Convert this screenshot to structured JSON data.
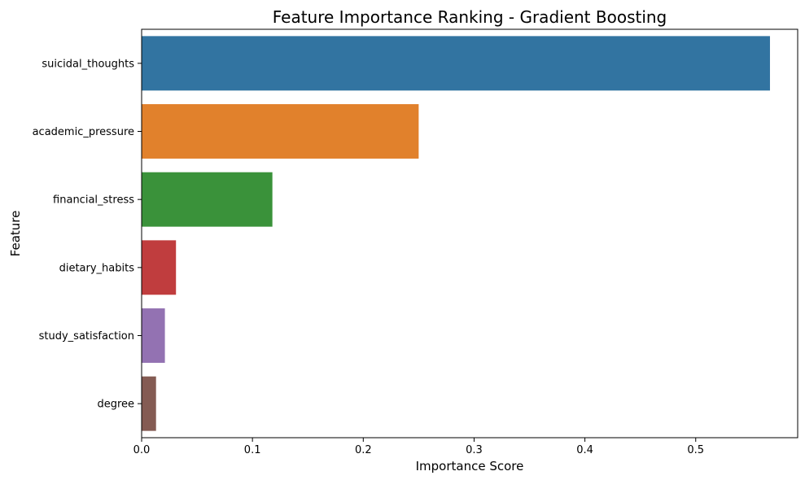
{
  "chart_data": {
    "type": "bar",
    "orientation": "horizontal",
    "title": "Feature Importance Ranking - Gradient Boosting",
    "xlabel": "Importance Score",
    "ylabel": "Feature",
    "categories": [
      "suicidal_thoughts",
      "academic_pressure",
      "financial_stress",
      "dietary_habits",
      "study_satisfaction",
      "degree"
    ],
    "values": [
      0.567,
      0.25,
      0.118,
      0.031,
      0.021,
      0.013
    ],
    "colors": [
      "#3274a1",
      "#e1812c",
      "#3a923a",
      "#c03d3e",
      "#9372b2",
      "#845b53"
    ],
    "xlim": [
      0,
      0.592
    ],
    "xticks": [
      0,
      0.1,
      0.2,
      0.3,
      0.4,
      0.5
    ],
    "xtick_labels": [
      "0.0",
      "0.1",
      "0.2",
      "0.3",
      "0.4",
      "0.5"
    ],
    "grid": false,
    "legend": "none"
  }
}
